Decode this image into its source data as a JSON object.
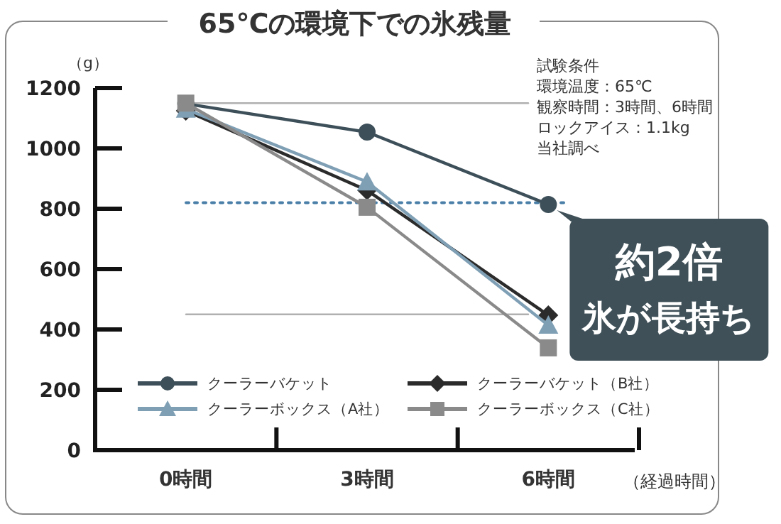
{
  "chart_data": {
    "type": "line",
    "title": "65℃の環境下での氷残量",
    "xlabel": "（経過時間）",
    "ylabel": "（g）",
    "categories": [
      "0時間",
      "3時間",
      "6時間"
    ],
    "ylim": [
      0,
      1200
    ],
    "yticks": [
      0,
      200,
      400,
      600,
      800,
      1000,
      1200
    ],
    "grid": false,
    "legend": "bottom",
    "line_style": "solid",
    "series": [
      {
        "name": "クーラーバケット",
        "color": "#3d4f59",
        "marker": "circle",
        "values": [
          1148,
          1054,
          814
        ]
      },
      {
        "name": "クーラーバケット（B社）",
        "color": "#2b2b2b",
        "marker": "diamond",
        "values": [
          1125,
          861,
          447
        ]
      },
      {
        "name": "クーラーボックス（A社）",
        "color": "#7f9fb5",
        "marker": "triangle",
        "values": [
          1130,
          889,
          414
        ]
      },
      {
        "name": "クーラーボックス（C社）",
        "color": "#8a8a8a",
        "marker": "square",
        "values": [
          1150,
          805,
          339
        ]
      }
    ],
    "ref_lines": [
      {
        "axis": "y",
        "value": 1150,
        "color": "#b0b0b0",
        "line_style": "solid"
      },
      {
        "axis": "y",
        "value": 450,
        "color": "#b0b0b0",
        "line_style": "solid"
      },
      {
        "axis": "y",
        "value": 820,
        "color": "#4a7fa8",
        "line_style": "dotted"
      }
    ],
    "annotations": [
      "試験条件",
      "環境温度：65℃",
      "観察時間：3時間、6時間",
      "ロックアイス：1.1kg",
      "当社調べ",
      {
        "text": "約2倍",
        "x": "6時間",
        "y": 814
      },
      {
        "text": "氷が長持ち",
        "x": "6時間",
        "y": 814
      }
    ]
  }
}
